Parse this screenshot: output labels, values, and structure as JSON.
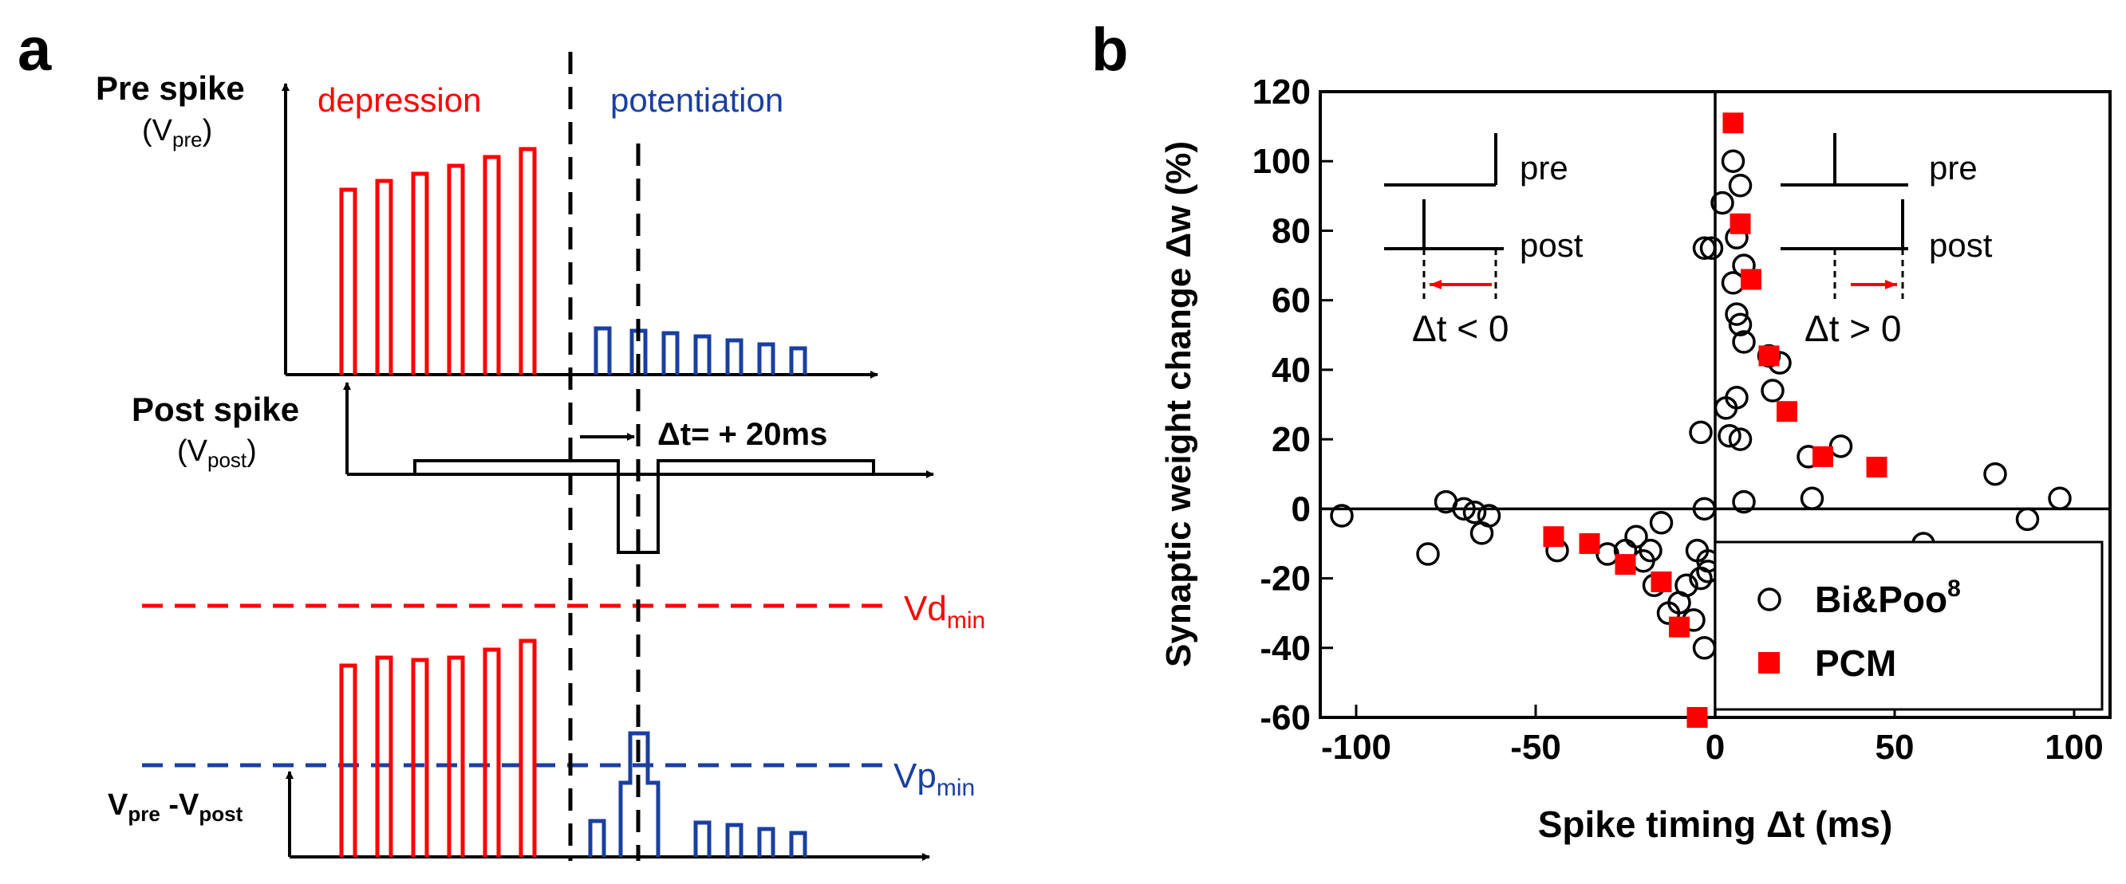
{
  "panel_a": {
    "label": "a",
    "pre_spike_label": "Pre spike",
    "vpre_V": "(V",
    "vpre_sub": "pre",
    "vpre_close": ")",
    "depression_label": "depression",
    "potentiation_label": "potentiation",
    "post_spike_label": "Post spike",
    "vpost_V": "(V",
    "vpost_sub": "post",
    "vpost_close": ")",
    "dt_label": "Δt= + 20ms",
    "vd_main": "Vd",
    "vd_sub": "min",
    "vp_main": "Vp",
    "vp_sub": "min",
    "diff_V1": "V",
    "diff_sub1": "pre",
    "diff_mid": " -V",
    "diff_sub2": "post",
    "colors": {
      "depression": "#ff0000",
      "potentiation": "#1a3fa0",
      "axis": "#000000"
    }
  },
  "panel_b": {
    "label": "b",
    "inset_left": {
      "pre": "pre",
      "post": "post",
      "dt": "Δt < 0"
    },
    "inset_right": {
      "pre": "pre",
      "post": "post",
      "dt": "Δt > 0"
    }
  },
  "chart_data": {
    "type": "scatter",
    "xlabel": "Spike timing Δt (ms)",
    "ylabel": "Synaptic weight change Δw (%)",
    "xlim": [
      -110,
      110
    ],
    "ylim": [
      -60,
      120
    ],
    "xticks": [
      -100,
      -50,
      0,
      50,
      100
    ],
    "yticks": [
      -60,
      -40,
      -20,
      0,
      20,
      40,
      60,
      80,
      100,
      120
    ],
    "legend_position": "bottom-right",
    "series": [
      {
        "name": "Bi&Poo",
        "superscript": "8",
        "marker": "open-circle",
        "color": "#000000",
        "points": [
          [
            -104,
            -2
          ],
          [
            -80,
            -13
          ],
          [
            -75,
            2
          ],
          [
            -70,
            0
          ],
          [
            -67,
            -1
          ],
          [
            -65,
            -7
          ],
          [
            -63,
            -2
          ],
          [
            -44,
            -12
          ],
          [
            -30,
            -13
          ],
          [
            -25,
            -12
          ],
          [
            -22,
            -8
          ],
          [
            -20,
            -15
          ],
          [
            -18,
            -12
          ],
          [
            -17,
            -22
          ],
          [
            -15,
            -4
          ],
          [
            -13,
            -30
          ],
          [
            -10,
            -27
          ],
          [
            -8,
            -22
          ],
          [
            -6,
            -32
          ],
          [
            -5,
            -12
          ],
          [
            -4,
            -20
          ],
          [
            -3,
            -40
          ],
          [
            -2,
            -18
          ],
          [
            -2,
            -15
          ],
          [
            -3,
            0
          ],
          [
            -4,
            22
          ],
          [
            2,
            88
          ],
          [
            5,
            100
          ],
          [
            7,
            93
          ],
          [
            6,
            78
          ],
          [
            8,
            70
          ],
          [
            5,
            65
          ],
          [
            6,
            56
          ],
          [
            7,
            53
          ],
          [
            8,
            48
          ],
          [
            3,
            29
          ],
          [
            6,
            32
          ],
          [
            4,
            21
          ],
          [
            7,
            20
          ],
          [
            8,
            2
          ],
          [
            -3,
            75
          ],
          [
            -1,
            75
          ],
          [
            15,
            44
          ],
          [
            18,
            42
          ],
          [
            16,
            34
          ],
          [
            26,
            15
          ],
          [
            27,
            3
          ],
          [
            35,
            18
          ],
          [
            58,
            -10
          ],
          [
            78,
            10
          ],
          [
            87,
            -3
          ],
          [
            96,
            3
          ]
        ]
      },
      {
        "name": "PCM",
        "marker": "filled-square",
        "color": "#ff0000",
        "points": [
          [
            5,
            111
          ],
          [
            7,
            82
          ],
          [
            10,
            66
          ],
          [
            15,
            44
          ],
          [
            20,
            28
          ],
          [
            30,
            15
          ],
          [
            45,
            12
          ],
          [
            -45,
            -8
          ],
          [
            -35,
            -10
          ],
          [
            -25,
            -16
          ],
          [
            -15,
            -21
          ],
          [
            -10,
            -34
          ],
          [
            -5,
            -60
          ]
        ]
      }
    ]
  }
}
